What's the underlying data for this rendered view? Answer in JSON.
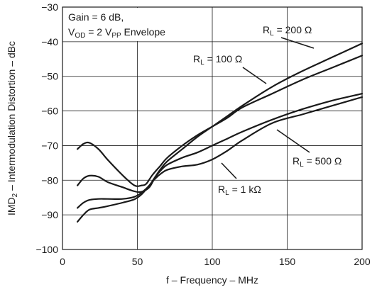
{
  "chart_data": {
    "type": "line",
    "xlabel": "f – Frequency – MHz",
    "ylabel": "IMD",
    "ylabel_sub": "2",
    "ylabel_rest": " – Intermodulation Distortion – dBc",
    "xlim": [
      0,
      200
    ],
    "ylim": [
      -100,
      -30
    ],
    "x_ticks": [
      0,
      50,
      100,
      150,
      200
    ],
    "y_ticks": [
      -30,
      -40,
      -50,
      -60,
      -70,
      -80,
      -90,
      -100
    ],
    "x_tick_labels": [
      "0",
      "50",
      "100",
      "150",
      "200"
    ],
    "y_tick_labels": [
      "−30",
      "−40",
      "−50",
      "−60",
      "−70",
      "−80",
      "−90",
      "−100"
    ],
    "grid": true,
    "conditions": {
      "line1": "Gain = 6 dB,",
      "line2_a": "V",
      "line2_sub_a": "OD",
      "line2_b": " = 2 V",
      "line2_sub_b": "PP",
      "line2_c": " Envelope"
    },
    "series": [
      {
        "name": "R_L = 100 Ω",
        "label_a": "R",
        "label_sub": "L",
        "label_b": " = 100 Ω",
        "x": [
          10,
          14,
          18,
          24,
          30,
          40,
          48,
          53,
          56,
          60,
          65,
          70,
          80,
          90,
          100,
          110,
          120,
          140,
          160,
          180,
          200
        ],
        "y": [
          -71,
          -69.5,
          -69.2,
          -71,
          -74,
          -78.5,
          -81.5,
          -81.5,
          -81,
          -78.5,
          -76,
          -73.5,
          -70,
          -67,
          -64.5,
          -62,
          -59,
          -55,
          -51,
          -47.5,
          -44
        ]
      },
      {
        "name": "R_L = 200 Ω",
        "label_a": "R",
        "label_sub": "L",
        "label_b": " = 200 Ω",
        "x": [
          10,
          14,
          18,
          24,
          30,
          40,
          48,
          53,
          58,
          62,
          66,
          70,
          80,
          90,
          100,
          110,
          120,
          140,
          160,
          180,
          200
        ],
        "y": [
          -81.5,
          -79.5,
          -78.7,
          -79,
          -80.5,
          -82,
          -83.2,
          -83.3,
          -82,
          -79,
          -76.5,
          -74.5,
          -71,
          -67.5,
          -64.5,
          -61.5,
          -58.5,
          -53,
          -48.5,
          -44.5,
          -40.5
        ]
      },
      {
        "name": "R_L = 500 Ω",
        "label_a": "R",
        "label_sub": "L",
        "label_b": " = 500 Ω",
        "x": [
          10,
          14,
          18,
          24,
          30,
          40,
          48,
          53,
          58,
          62,
          66,
          70,
          80,
          90,
          100,
          110,
          120,
          140,
          160,
          180,
          200
        ],
        "y": [
          -88,
          -86.5,
          -85.7,
          -85.4,
          -85.4,
          -85.4,
          -84.8,
          -83.5,
          -81.5,
          -79,
          -77,
          -75.5,
          -73.5,
          -72,
          -70,
          -68,
          -66,
          -62.5,
          -59.5,
          -57,
          -55
        ]
      },
      {
        "name": "R_L = 1 kΩ",
        "label_a": "R",
        "label_sub": "L",
        "label_b": " = 1 kΩ",
        "x": [
          10,
          14,
          18,
          24,
          30,
          40,
          48,
          53,
          58,
          62,
          66,
          70,
          80,
          90,
          100,
          110,
          120,
          140,
          160,
          180,
          200
        ],
        "y": [
          -92,
          -90,
          -88.5,
          -88,
          -87.5,
          -86.5,
          -85.5,
          -84,
          -81.5,
          -79.5,
          -78,
          -77,
          -76,
          -75.5,
          -74,
          -71.5,
          -68.5,
          -63.5,
          -61,
          -58.5,
          -56
        ]
      }
    ]
  }
}
